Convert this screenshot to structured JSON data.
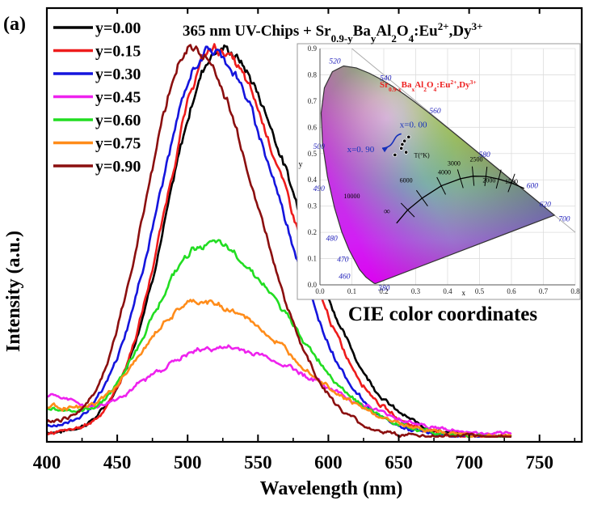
{
  "chart_data": {
    "type": "line",
    "panel_label": "(a)",
    "title_parts": {
      "pre": "365 nm UV-Chips + Sr",
      "sub1": "0.9-y",
      "mid1": "Ba",
      "sub2": "y",
      "mid2": "Al",
      "sub3": "2",
      "mid3": "O",
      "sub4": "4",
      "mid4": ":Eu",
      "sup1": "2+",
      "mid5": ",Dy",
      "sup2": "3+"
    },
    "xlabel": "Wavelength (nm)",
    "ylabel": "Intensity (a.u.)",
    "xlim": [
      400,
      780
    ],
    "ylim": [
      0,
      1.0
    ],
    "xticks": [
      400,
      450,
      500,
      550,
      600,
      650,
      700,
      750
    ],
    "legend_position": "top-left",
    "series": [
      {
        "label": "y=0.00",
        "color": "#000000",
        "peak": 523,
        "amp": 0.895,
        "wl": 36,
        "wr": 54,
        "bump": 0.0
      },
      {
        "label": "y=0.15",
        "color": "#ee1c1c",
        "peak": 519,
        "amp": 0.895,
        "wl": 34,
        "wr": 53,
        "bump": 0.0
      },
      {
        "label": "y=0.30",
        "color": "#1515dd",
        "peak": 516,
        "amp": 0.89,
        "wl": 37,
        "wr": 50,
        "bump": 0.01
      },
      {
        "label": "y=0.45",
        "color": "#ee22ee",
        "peak": 522,
        "amp": 0.205,
        "wl": 55,
        "wr": 72,
        "bump": 0.07
      },
      {
        "label": "y=0.60",
        "color": "#22dd22",
        "peak": 514,
        "amp": 0.445,
        "wl": 40,
        "wr": 58,
        "bump": 0.05
      },
      {
        "label": "y=0.75",
        "color": "#ff8c1a",
        "peak": 508,
        "amp": 0.31,
        "wl": 42,
        "wr": 66,
        "bump": 0.05
      },
      {
        "label": "y=0.90",
        "color": "#8b0f0f",
        "peak": 503,
        "amp": 0.895,
        "wl": 33,
        "wr": 46,
        "bump": 0.02
      }
    ],
    "inset": {
      "title_parts": {
        "pre": "Sr",
        "sub1": "0.9-x",
        "mid1": "Ba",
        "sub2": "x",
        "mid2": "Al",
        "sub3": "2",
        "mid3": "O",
        "sub4": "4",
        "mid4": ":Eu",
        "sup1": "2+",
        "mid5": ",Dy",
        "sup2": "3+"
      },
      "caption": "CIE color coordinates",
      "xlabel": "x",
      "ylabel": "y",
      "xticks": [
        "0.0",
        "0.1",
        "0.2",
        "0.3",
        "0.4",
        "0.5",
        "0.6",
        "0.7",
        "0.8"
      ],
      "yticks": [
        "0.0",
        "0.1",
        "0.2",
        "0.3",
        "0.4",
        "0.5",
        "0.6",
        "0.7",
        "0.8",
        "0.9"
      ],
      "wavelength_labels": [
        "380",
        "460",
        "470",
        "480",
        "490",
        "500",
        "520",
        "540",
        "560",
        "580",
        "600",
        "620",
        "700"
      ],
      "planckian_labels": [
        "∞",
        "10000",
        "6000",
        "4000",
        "3000",
        "2500",
        "2000",
        "1500"
      ],
      "planckian_unit": "T(°K)",
      "annotation_start": "x=0. 00",
      "annotation_end": "x=0. 90",
      "points": [
        [
          0.278,
          0.563
        ],
        [
          0.265,
          0.548
        ],
        [
          0.258,
          0.535
        ],
        [
          0.255,
          0.52
        ],
        [
          0.27,
          0.505
        ],
        [
          0.235,
          0.495
        ]
      ]
    }
  }
}
